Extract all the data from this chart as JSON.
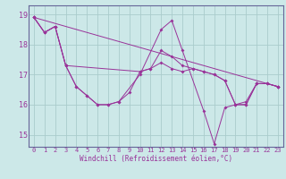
{
  "xlabel": "Windchill (Refroidissement éolien,°C)",
  "bg_color": "#cce8e8",
  "plot_bg": "#cce8e8",
  "grid_color": "#aacccc",
  "line_color": "#993399",
  "spine_color": "#666699",
  "ylim": [
    14.6,
    19.3
  ],
  "xlim": [
    -0.5,
    23.5
  ],
  "yticks": [
    15,
    16,
    17,
    18,
    19
  ],
  "xticks": [
    0,
    1,
    2,
    3,
    4,
    5,
    6,
    7,
    8,
    9,
    10,
    11,
    12,
    13,
    14,
    15,
    16,
    17,
    18,
    19,
    20,
    21,
    22,
    23
  ],
  "series": [
    {
      "x": [
        0,
        1,
        2,
        3,
        4,
        5,
        6,
        7,
        8,
        10,
        12,
        13,
        14,
        16,
        17,
        18,
        19,
        20,
        21,
        22,
        23
      ],
      "y": [
        18.9,
        18.4,
        18.6,
        17.3,
        16.6,
        16.3,
        16.0,
        16.0,
        16.1,
        17.0,
        18.5,
        18.8,
        17.8,
        15.8,
        14.7,
        15.9,
        16.0,
        16.0,
        16.7,
        16.7,
        16.6
      ]
    },
    {
      "x": [
        0,
        1,
        2,
        3,
        4,
        5,
        6,
        7,
        8,
        9,
        10,
        11,
        12,
        13,
        14,
        15,
        16,
        17,
        18,
        19,
        20,
        21,
        22,
        23
      ],
      "y": [
        18.9,
        18.4,
        18.6,
        17.3,
        16.6,
        16.3,
        16.0,
        16.0,
        16.1,
        16.4,
        17.1,
        17.2,
        17.8,
        17.6,
        17.3,
        17.2,
        17.1,
        17.0,
        16.8,
        16.0,
        16.1,
        16.7,
        16.7,
        16.6
      ]
    },
    {
      "x": [
        0,
        23
      ],
      "y": [
        18.9,
        16.6
      ]
    },
    {
      "x": [
        0,
        1,
        2,
        3,
        10,
        11,
        12,
        13,
        14,
        15,
        16,
        17,
        18,
        19,
        20,
        21,
        22,
        23
      ],
      "y": [
        18.9,
        18.4,
        18.6,
        17.3,
        17.1,
        17.2,
        17.4,
        17.2,
        17.1,
        17.2,
        17.1,
        17.0,
        16.8,
        16.0,
        16.0,
        16.7,
        16.7,
        16.6
      ]
    }
  ]
}
